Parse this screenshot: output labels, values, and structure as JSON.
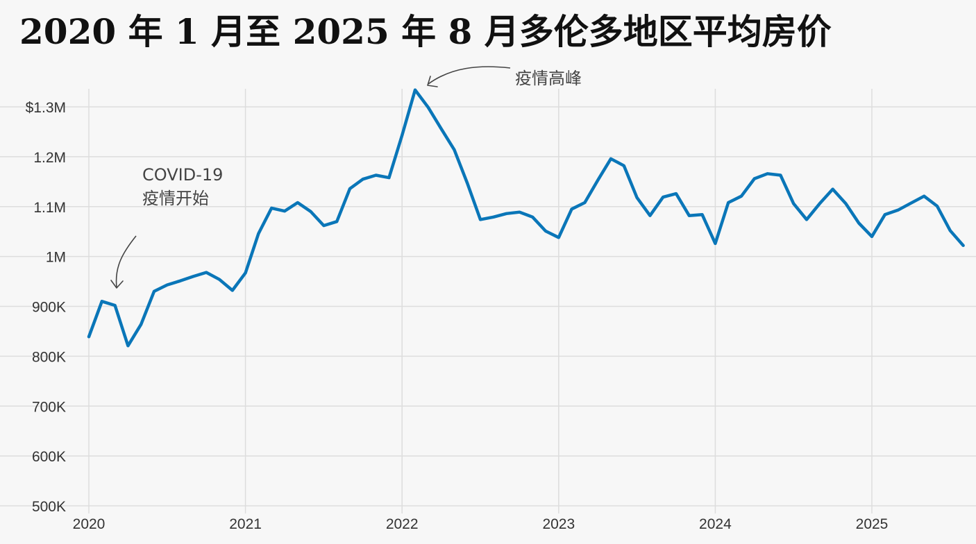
{
  "chart_data": {
    "type": "line",
    "title": "2020 年 1 月至 2025 年 8 月多伦多地区平均房价",
    "xlabel": "",
    "ylabel": "",
    "x_tick_labels": [
      "2020",
      "2021",
      "2022",
      "2023",
      "2024",
      "2025"
    ],
    "x_ticks": [
      "2020-01",
      "2021-01",
      "2022-01",
      "2023-01",
      "2024-01",
      "2025-01"
    ],
    "xlim": [
      "2020-01",
      "2025-08"
    ],
    "y_ticks": [
      500000,
      600000,
      700000,
      800000,
      900000,
      1000000,
      1100000,
      1200000,
      1300000
    ],
    "y_tick_labels": [
      "500K",
      "600K",
      "700K",
      "800K",
      "900K",
      "1M",
      "1.1M",
      "1.2M",
      "$1.3M"
    ],
    "ylim": [
      500000,
      1340000
    ],
    "grid": true,
    "line_color": "#0a76b8",
    "grid_color": "#dddddd",
    "series": [
      {
        "x": [
          "2020-01",
          "2020-02",
          "2020-03",
          "2020-04",
          "2020-05",
          "2020-06",
          "2020-07",
          "2020-08",
          "2020-09",
          "2020-10",
          "2020-11",
          "2020-12",
          "2021-01",
          "2021-02",
          "2021-03",
          "2021-04",
          "2021-05",
          "2021-06",
          "2021-07",
          "2021-08",
          "2021-09",
          "2021-10",
          "2021-11",
          "2021-12",
          "2022-01",
          "2022-02",
          "2022-03",
          "2022-04",
          "2022-05",
          "2022-06",
          "2022-07",
          "2022-08",
          "2022-09",
          "2022-10",
          "2022-11",
          "2022-12",
          "2023-01",
          "2023-02",
          "2023-03",
          "2023-04",
          "2023-05",
          "2023-06",
          "2023-07",
          "2023-08",
          "2023-09",
          "2023-10",
          "2023-11",
          "2023-12",
          "2024-01",
          "2024-02",
          "2024-03",
          "2024-04",
          "2024-05",
          "2024-06",
          "2024-07",
          "2024-08",
          "2024-09",
          "2024-10",
          "2024-11",
          "2024-12",
          "2025-01",
          "2025-02",
          "2025-03",
          "2025-04",
          "2025-05",
          "2025-06",
          "2025-07",
          "2025-08"
        ],
        "values": [
          839000,
          910000,
          902000,
          821000,
          864000,
          930000,
          943000,
          951000,
          960000,
          968000,
          954000,
          932000,
          967000,
          1046000,
          1097000,
          1091000,
          1108000,
          1090000,
          1062000,
          1070000,
          1136000,
          1155000,
          1163000,
          1158000,
          1243000,
          1334000,
          1299000,
          1256000,
          1214000,
          1147000,
          1074000,
          1079000,
          1086000,
          1089000,
          1079000,
          1051000,
          1038000,
          1095000,
          1108000,
          1153000,
          1196000,
          1182000,
          1118000,
          1082000,
          1119000,
          1126000,
          1082000,
          1084000,
          1026000,
          1108000,
          1121000,
          1156000,
          1166000,
          1163000,
          1106000,
          1074000,
          1106000,
          1135000,
          1106000,
          1067000,
          1040000,
          1084000,
          1093000,
          1107000,
          1121000,
          1101000,
          1052000,
          1022000
        ]
      }
    ],
    "annotations": [
      {
        "lines": [
          "COVID-19",
          "疫情开始"
        ],
        "target_x": "2020-03",
        "target_value": 902000
      },
      {
        "lines": [
          "疫情高峰"
        ],
        "target_x": "2022-02",
        "target_value": 1334000
      }
    ]
  }
}
